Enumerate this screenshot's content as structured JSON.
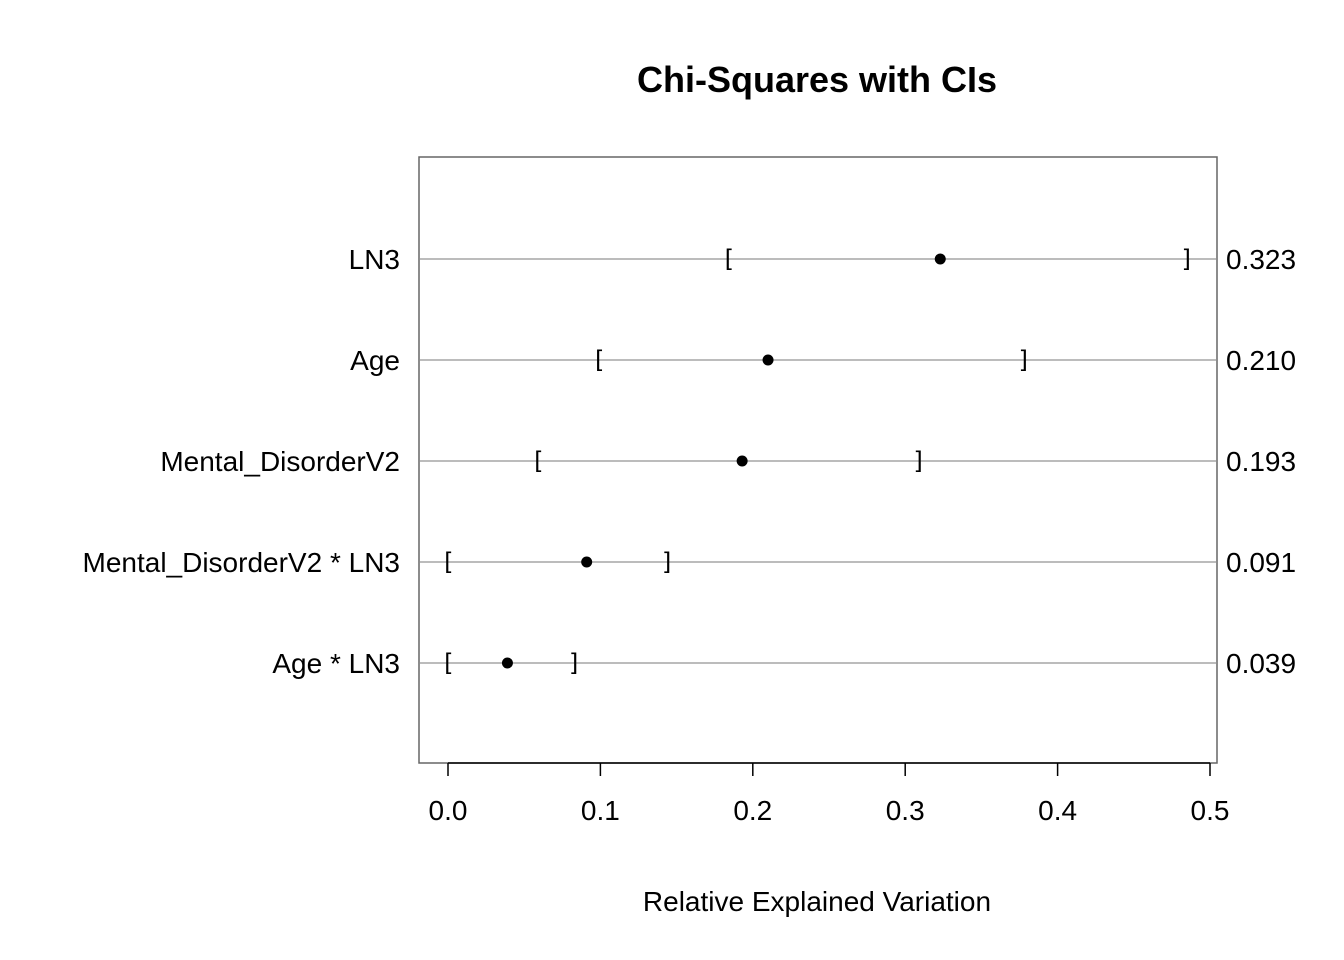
{
  "chart_data": {
    "type": "scatter",
    "title": "Chi-Squares with CIs",
    "xlabel": "Relative Explained Variation",
    "ylabel": "",
    "xlim": [
      0,
      0.5
    ],
    "xticks": [
      0.0,
      0.1,
      0.2,
      0.3,
      0.4,
      0.5
    ],
    "xtick_labels": [
      "0.0",
      "0.1",
      "0.2",
      "0.3",
      "0.4",
      "0.5"
    ],
    "grid": true,
    "rows": [
      {
        "label": "LN3",
        "value": 0.323,
        "value_label": "0.323",
        "ci_low": 0.184,
        "ci_high": 0.485
      },
      {
        "label": "Age",
        "value": 0.21,
        "value_label": "0.210",
        "ci_low": 0.099,
        "ci_high": 0.378
      },
      {
        "label": "Mental_DisorderV2",
        "value": 0.193,
        "value_label": "0.193",
        "ci_low": 0.059,
        "ci_high": 0.309
      },
      {
        "label": "Mental_DisorderV2 * LN3",
        "value": 0.091,
        "value_label": "0.091",
        "ci_low": 0.0,
        "ci_high": 0.144
      },
      {
        "label": "Age * LN3",
        "value": 0.039,
        "value_label": "0.039",
        "ci_low": 0.0,
        "ci_high": 0.083
      }
    ],
    "colors": {
      "points": "#000000",
      "gridlines": "#b3b3b3",
      "frame": "#666666"
    }
  }
}
